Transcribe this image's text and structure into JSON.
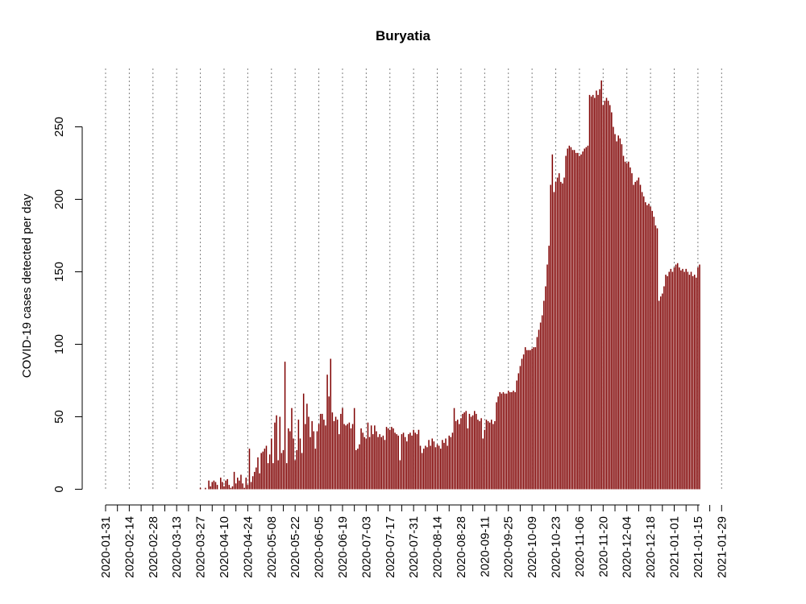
{
  "chart_data": {
    "type": "bar",
    "title": "Buryatia",
    "xlabel": "",
    "ylabel": "COVID-19 cases detected per day",
    "ylim": [
      0,
      285
    ],
    "y_ticks": [
      0,
      50,
      100,
      150,
      200,
      250
    ],
    "bar_color": "#7f0000",
    "gridlines": "vertical dotted at each labeled date",
    "x_start": "2020-01-31",
    "x_end": "2021-01-29",
    "x_tick_labels": [
      "2020-01-31",
      "2020-02-14",
      "2020-02-28",
      "2020-03-13",
      "2020-03-27",
      "2020-04-10",
      "2020-04-24",
      "2020-05-08",
      "2020-05-22",
      "2020-06-05",
      "2020-06-19",
      "2020-07-03",
      "2020-07-17",
      "2020-07-31",
      "2020-08-14",
      "2020-08-28",
      "2020-09-11",
      "2020-09-25",
      "2020-10-09",
      "2020-10-23",
      "2020-11-06",
      "2020-11-20",
      "2020-12-04",
      "2020-12-18",
      "2021-01-01",
      "2021-01-15",
      "2021-01-29"
    ],
    "series": [
      {
        "values": [
          0,
          0,
          0,
          0,
          0,
          0,
          0,
          0,
          0,
          0,
          0,
          0,
          0,
          0,
          0,
          0,
          0,
          0,
          0,
          0,
          0,
          0,
          0,
          0,
          0,
          0,
          0,
          0,
          0,
          0,
          0,
          0,
          0,
          0,
          0,
          0,
          0,
          0,
          0,
          0,
          0,
          0,
          0,
          0,
          0,
          0,
          0,
          0,
          0,
          0,
          0,
          0,
          0,
          0,
          0,
          0,
          1,
          0,
          0,
          1,
          0,
          6,
          2,
          5,
          6,
          5,
          3,
          0,
          8,
          5,
          2,
          6,
          7,
          3,
          1,
          2,
          12,
          4,
          8,
          6,
          10,
          4,
          1,
          8,
          3,
          28,
          5,
          9,
          12,
          15,
          22,
          11,
          25,
          26,
          28,
          30,
          18,
          24,
          35,
          18,
          46,
          51,
          20,
          50,
          25,
          27,
          88,
          18,
          42,
          40,
          56,
          35,
          20,
          27,
          48,
          35,
          25,
          66,
          45,
          59,
          50,
          36,
          47,
          40,
          28,
          40,
          45,
          52,
          52,
          48,
          44,
          79,
          64,
          90,
          53,
          47,
          50,
          48,
          38,
          52,
          56,
          45,
          44,
          45,
          46,
          42,
          45,
          56,
          27,
          28,
          31,
          42,
          39,
          36,
          35,
          46,
          36,
          44,
          38,
          44,
          40,
          36,
          38,
          36,
          37,
          34,
          43,
          42,
          41,
          43,
          42,
          39,
          38,
          37,
          20,
          38,
          39,
          36,
          33,
          38,
          39,
          37,
          41,
          39,
          38,
          41,
          30,
          25,
          28,
          30,
          29,
          34,
          30,
          35,
          33,
          29,
          31,
          30,
          28,
          34,
          32,
          35,
          30,
          37,
          36,
          39,
          56,
          47,
          48,
          45,
          49,
          52,
          53,
          54,
          42,
          52,
          50,
          51,
          54,
          52,
          48,
          47,
          49,
          35,
          41,
          48,
          47,
          46,
          48,
          45,
          47,
          60,
          64,
          67,
          66,
          67,
          66,
          66,
          68,
          67,
          67,
          68,
          67,
          75,
          80,
          85,
          90,
          93,
          98,
          96,
          96,
          96,
          97,
          98,
          98,
          105,
          110,
          115,
          120,
          130,
          140,
          155,
          168,
          210,
          231,
          205,
          212,
          215,
          218,
          212,
          211,
          215,
          230,
          235,
          237,
          236,
          234,
          234,
          232,
          232,
          230,
          231,
          233,
          235,
          236,
          237,
          272,
          271,
          272,
          270,
          275,
          272,
          276,
          282,
          265,
          268,
          270,
          268,
          265,
          260,
          250,
          245,
          240,
          244,
          242,
          238,
          230,
          226,
          225,
          226,
          222,
          218,
          210,
          212,
          213,
          215,
          210,
          205,
          202,
          198,
          196,
          197,
          195,
          192,
          188,
          182,
          180,
          130,
          133,
          135,
          140,
          148,
          147,
          150,
          152,
          150,
          153,
          155,
          156,
          153,
          151,
          152,
          150,
          152,
          150,
          148,
          150,
          147,
          148,
          146,
          153,
          155
        ]
      }
    ]
  }
}
